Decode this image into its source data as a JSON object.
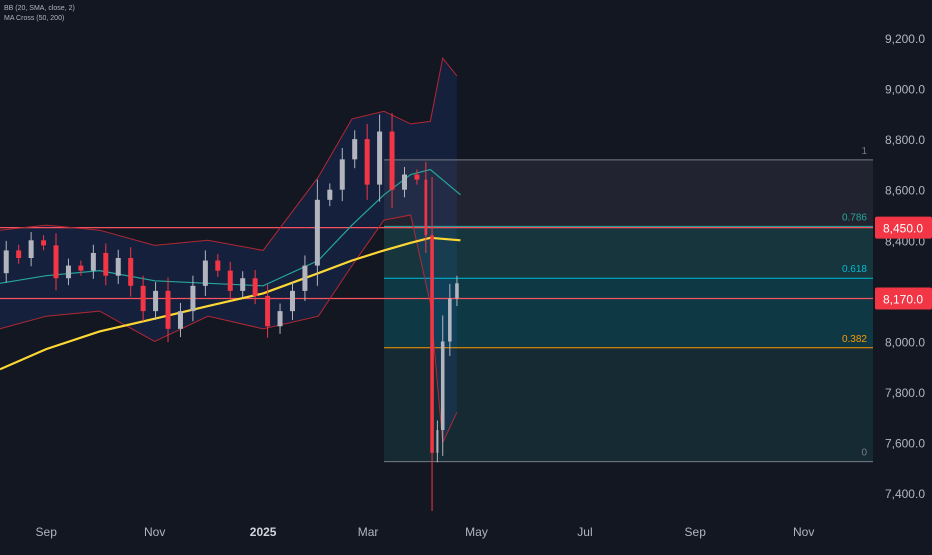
{
  "legend": {
    "bb": "BB (20, SMA, close, 2)",
    "ma_cross": "MA Cross (50, 200)"
  },
  "colors": {
    "background": "#131722",
    "up_candle": "#b2b5be",
    "down_candle": "#f23645",
    "bb_band": "#b22833",
    "bb_basis": "#2962ff",
    "ma50": "#26a69a",
    "ma200": "#fdd835",
    "hline": "#f7525f",
    "fib_1": "#787b86",
    "fib_786": "#26a69a",
    "fib_618": "#00bcd4",
    "fib_382": "#ff9800",
    "axis_text": "#b2b5be",
    "label_bg": "#f23645"
  },
  "chart_data": {
    "type": "candlestick",
    "x_axis": {
      "labels": [
        "Sep",
        "Nov",
        "2025",
        "Mar",
        "May",
        "Jul",
        "Sep",
        "Nov"
      ],
      "label_dates": [
        "2024-09-01",
        "2024-11-01",
        "2025-01-01",
        "2025-03-01",
        "2025-05-01",
        "2025-07-01",
        "2025-09-01",
        "2025-11-01"
      ],
      "range": [
        "2024-08-06",
        "2025-12-10"
      ]
    },
    "y_axis": {
      "labels": [
        "9,200.0",
        "9,000.0",
        "8,800.0",
        "8,600.0",
        "8,400.0",
        "8,200.0",
        "8,000.0",
        "7,800.0",
        "7,600.0",
        "7,400.0"
      ],
      "ticks": [
        9200,
        9000,
        8800,
        8600,
        8400,
        8200,
        8000,
        7800,
        7600,
        7400
      ],
      "ylim": [
        7310,
        9350
      ]
    },
    "horizontal_lines": [
      {
        "value": 8450,
        "label": "8,450.0"
      },
      {
        "value": 8170,
        "label": "8,170.0"
      }
    ],
    "fibonacci": {
      "start_date": "2025-03-10",
      "end_date": "2025-12-10",
      "levels": [
        {
          "ratio": "1",
          "price": 8718
        },
        {
          "ratio": "0.786",
          "price": 8455
        },
        {
          "ratio": "0.618",
          "price": 8250
        },
        {
          "ratio": "0.382",
          "price": 7975
        },
        {
          "ratio": "0",
          "price": 7525
        }
      ]
    },
    "series": [
      {
        "kind": "close",
        "points": [
          [
            "2024-08-06",
            8270
          ],
          [
            "2024-08-13",
            8360
          ],
          [
            "2024-08-20",
            8330
          ],
          [
            "2024-08-27",
            8400
          ],
          [
            "2024-09-03",
            8380
          ],
          [
            "2024-09-10",
            8250
          ],
          [
            "2024-09-17",
            8300
          ],
          [
            "2024-09-24",
            8280
          ],
          [
            "2024-10-01",
            8350
          ],
          [
            "2024-10-08",
            8260
          ],
          [
            "2024-10-15",
            8330
          ],
          [
            "2024-10-22",
            8220
          ],
          [
            "2024-10-29",
            8120
          ],
          [
            "2024-11-05",
            8200
          ],
          [
            "2024-11-12",
            8050
          ],
          [
            "2024-11-19",
            8120
          ],
          [
            "2024-11-26",
            8220
          ],
          [
            "2024-12-03",
            8320
          ],
          [
            "2024-12-10",
            8280
          ],
          [
            "2024-12-17",
            8200
          ],
          [
            "2024-12-24",
            8250
          ],
          [
            "2024-12-31",
            8180
          ],
          [
            "2025-01-07",
            8060
          ],
          [
            "2025-01-14",
            8120
          ],
          [
            "2025-01-21",
            8200
          ],
          [
            "2025-01-28",
            8300
          ],
          [
            "2025-02-04",
            8560
          ],
          [
            "2025-02-11",
            8600
          ],
          [
            "2025-02-18",
            8720
          ],
          [
            "2025-02-25",
            8800
          ],
          [
            "2025-03-04",
            8620
          ],
          [
            "2025-03-11",
            8830
          ],
          [
            "2025-03-18",
            8600
          ],
          [
            "2025-03-25",
            8660
          ],
          [
            "2025-04-01",
            8640
          ],
          [
            "2025-04-04",
            8420
          ],
          [
            "2025-04-08",
            7560
          ],
          [
            "2025-04-10",
            7650
          ],
          [
            "2025-04-14",
            8000
          ],
          [
            "2025-04-18",
            8170
          ],
          [
            "2025-04-22",
            8230
          ]
        ]
      },
      {
        "name": "BB upper",
        "points": [
          [
            "2024-08-06",
            8440
          ],
          [
            "2024-09-01",
            8460
          ],
          [
            "2024-10-01",
            8440
          ],
          [
            "2024-11-01",
            8380
          ],
          [
            "2024-12-01",
            8400
          ],
          [
            "2025-01-01",
            8360
          ],
          [
            "2025-02-01",
            8650
          ],
          [
            "2025-02-20",
            8880
          ],
          [
            "2025-03-10",
            8910
          ],
          [
            "2025-03-25",
            8860
          ],
          [
            "2025-04-05",
            8870
          ],
          [
            "2025-04-12",
            9120
          ],
          [
            "2025-04-20",
            9050
          ]
        ]
      },
      {
        "name": "BB lower",
        "points": [
          [
            "2024-08-06",
            8050
          ],
          [
            "2024-09-01",
            8100
          ],
          [
            "2024-10-01",
            8120
          ],
          [
            "2024-11-01",
            8000
          ],
          [
            "2024-12-01",
            8100
          ],
          [
            "2025-01-01",
            8050
          ],
          [
            "2025-02-01",
            8100
          ],
          [
            "2025-02-20",
            8300
          ],
          [
            "2025-03-10",
            8480
          ],
          [
            "2025-03-25",
            8500
          ],
          [
            "2025-04-05",
            8150
          ],
          [
            "2025-04-12",
            7600
          ],
          [
            "2025-04-20",
            7720
          ]
        ]
      },
      {
        "name": "MA 50",
        "points": [
          [
            "2024-08-06",
            8230
          ],
          [
            "2024-09-01",
            8260
          ],
          [
            "2024-10-01",
            8280
          ],
          [
            "2024-11-01",
            8240
          ],
          [
            "2024-12-01",
            8230
          ],
          [
            "2025-01-01",
            8220
          ],
          [
            "2025-02-01",
            8320
          ],
          [
            "2025-02-20",
            8460
          ],
          [
            "2025-03-10",
            8580
          ],
          [
            "2025-03-25",
            8660
          ],
          [
            "2025-04-05",
            8680
          ],
          [
            "2025-04-22",
            8580
          ]
        ]
      },
      {
        "name": "MA 200",
        "points": [
          [
            "2024-08-06",
            7890
          ],
          [
            "2024-09-01",
            7970
          ],
          [
            "2024-10-01",
            8040
          ],
          [
            "2024-11-01",
            8090
          ],
          [
            "2024-12-01",
            8140
          ],
          [
            "2025-01-01",
            8190
          ],
          [
            "2025-02-01",
            8270
          ],
          [
            "2025-02-20",
            8320
          ],
          [
            "2025-03-10",
            8360
          ],
          [
            "2025-03-25",
            8390
          ],
          [
            "2025-04-05",
            8410
          ],
          [
            "2025-04-22",
            8400
          ]
        ]
      }
    ]
  }
}
